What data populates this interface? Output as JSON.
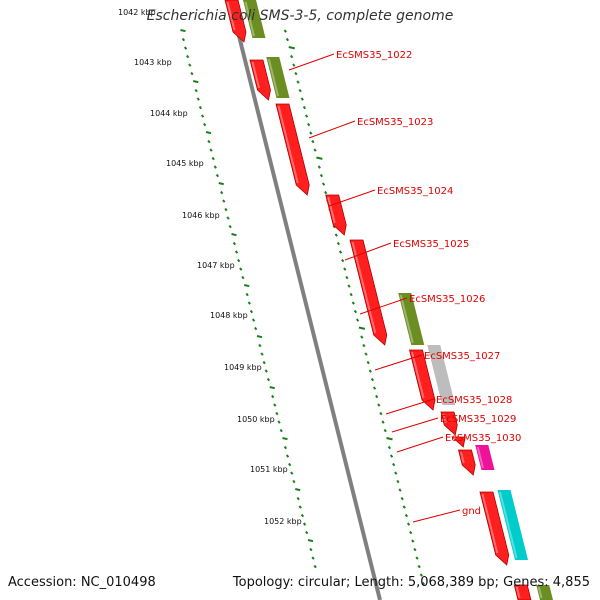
{
  "title": "Escherichia coli SMS-3-5, complete genome",
  "footer": {
    "accession": "Accession: NC_010498",
    "summary": "Topology: circular; Length: 5,068,389 bp; Genes: 4,855"
  },
  "scale_labels": [
    "1042 kbp",
    "1043 kbp",
    "1044 kbp",
    "1045 kbp",
    "1046 kbp",
    "1047 kbp",
    "1048 kbp",
    "1049 kbp",
    "1050 kbp",
    "1051 kbp",
    "1052 kbp"
  ],
  "colors": {
    "cds": "#ff1f1f",
    "cds_dark": "#b00000",
    "olive": "#6b8e23",
    "gray": "#bdbdbd",
    "magenta": "#ee1199",
    "cyan": "#00cccc",
    "backbone": "#808080",
    "ticks": "#1a7f1a",
    "label": "#e00000"
  },
  "gene_labels": [
    "EcSMS35_1022",
    "EcSMS35_1023",
    "EcSMS35_1024",
    "EcSMS35_1025",
    "EcSMS35_1026",
    "EcSMS35_1027",
    "EcSMS35_1028",
    "EcSMS35_1029",
    "EcSMS35_1030",
    "gnd"
  ]
}
